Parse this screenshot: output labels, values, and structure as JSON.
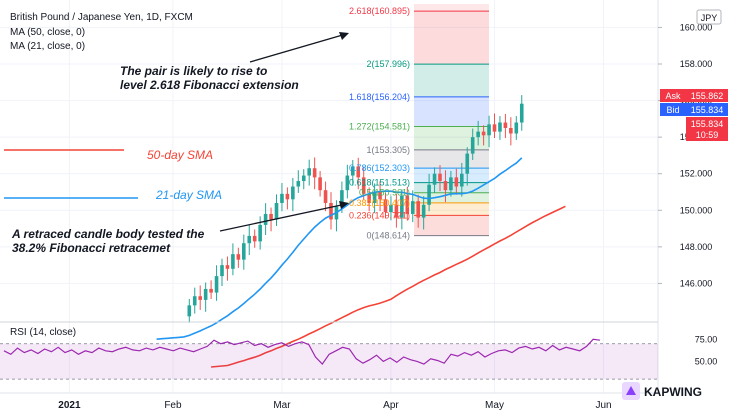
{
  "header": {
    "symbol_line": "British Pound / Japanese Yen, 1D, FXCM",
    "ma50_label": "MA (50, close, 0)",
    "ma21_label": "MA (21, close, 0)",
    "currency_badge": "JPY"
  },
  "annotations": {
    "top_line1": "The pair is likely to rise to",
    "top_line2": "level 2.618 Fibonacci  extension",
    "bottom_line1": "A retraced candle body tested the",
    "bottom_line2": "38.2% Fibonacci retracemet",
    "sma50": "50-day SMA",
    "sma21": "21-day SMA"
  },
  "price_tags": {
    "ask_label": "Ask",
    "ask_value": "155.862",
    "bid_label": "Bid",
    "bid_value": "155.834",
    "last_value": "155.834",
    "countdown": "10:59"
  },
  "watermark_logo": "KAPWING",
  "colors": {
    "up": "#26a69a",
    "down": "#ef5350",
    "ma21": "#2196f3",
    "ma50": "#f44336",
    "rsi": "#9c27b0",
    "ask": "#f23645",
    "bid": "#2962ff"
  },
  "chart_data": {
    "type": "candlestick",
    "title": "British Pound / Japanese Yen, 1D, FXCM",
    "y_axis": {
      "min": 144.0,
      "max": 161.5,
      "ticks": [
        146.0,
        148.0,
        150.0,
        152.0,
        154.0,
        156.0,
        158.0,
        160.0
      ]
    },
    "x_ticks": [
      {
        "label": "2021",
        "index": 12
      },
      {
        "label": "Feb",
        "index": 31
      },
      {
        "label": "Mar",
        "index": 51
      },
      {
        "label": "Apr",
        "index": 71
      },
      {
        "label": "May",
        "index": 90
      },
      {
        "label": "Jun",
        "index": 110
      }
    ],
    "candles_start_index": 34,
    "closes": [
      144.8,
      145.3,
      145.1,
      145.7,
      145.5,
      146.4,
      147.0,
      146.8,
      147.6,
      147.3,
      148.2,
      148.6,
      148.3,
      149.2,
      149.8,
      149.5,
      150.4,
      150.9,
      150.6,
      151.3,
      151.6,
      151.9,
      152.3,
      151.8,
      151.1,
      150.4,
      149.5,
      150.2,
      151.1,
      151.9,
      152.4,
      151.8,
      150.9,
      150.4,
      151.0,
      150.6,
      149.9,
      150.3,
      149.6,
      150.8,
      149.8,
      150.5,
      149.6,
      150.3,
      151.4,
      152.0,
      151.6,
      151.1,
      151.8,
      151.3,
      152.0,
      153.1,
      154.0,
      154.3,
      154.1,
      154.7,
      154.3,
      154.8,
      154.5,
      154.2,
      154.8,
      155.83
    ],
    "fibonacci_levels": [
      {
        "label": "2.618(160.895)",
        "value": 160.895,
        "color": "#f23645"
      },
      {
        "label": "2(157.996)",
        "value": 157.996,
        "color": "#089981"
      },
      {
        "label": "1.618(156.204)",
        "value": 156.204,
        "color": "#2962ff"
      },
      {
        "label": "1.272(154.581)",
        "value": 154.581,
        "color": "#4caf50"
      },
      {
        "label": "1(153.305)",
        "value": 153.305,
        "color": "#787b86"
      },
      {
        "label": "0.786(152.303)",
        "value": 152.303,
        "color": "#2196f3"
      },
      {
        "label": "0.618(151.513)",
        "value": 151.513,
        "color": "#009688"
      },
      {
        "label": "0.5(150.961)",
        "value": 150.961,
        "color": "#4caf50"
      },
      {
        "label": "0.382(150.407)",
        "value": 150.407,
        "color": "#ff9800"
      },
      {
        "label": "0.236(149.721)",
        "value": 149.721,
        "color": "#f44336"
      },
      {
        "label": "0(148.614)",
        "value": 148.614,
        "color": "#787b86"
      }
    ],
    "series": [
      {
        "name": "MA (50, close, 0)",
        "color": "#f44336"
      },
      {
        "name": "MA (21, close, 0)",
        "color": "#2196f3"
      }
    ],
    "rsi": {
      "label": "RSI (14, close)",
      "ticks": [
        75.0,
        50.0
      ],
      "band": [
        30,
        70
      ],
      "values": [
        62,
        58,
        65,
        60,
        63,
        59,
        64,
        61,
        66,
        60,
        63,
        58,
        62,
        60,
        65,
        62,
        61,
        64,
        66,
        63,
        62,
        65,
        63,
        66,
        64,
        62,
        65,
        63,
        61,
        64,
        67,
        74,
        70,
        72,
        69,
        71,
        73,
        68,
        70,
        66,
        69,
        71,
        67,
        70,
        72,
        69,
        55,
        47,
        58,
        62,
        66,
        64,
        53,
        48,
        52,
        57,
        50,
        54,
        49,
        55,
        52,
        50,
        47,
        53,
        51,
        48,
        58,
        56,
        60,
        57,
        61,
        55,
        59,
        62,
        63,
        60,
        65,
        67,
        64,
        66,
        62,
        68,
        63,
        66,
        64,
        62,
        67,
        75,
        74
      ]
    }
  }
}
